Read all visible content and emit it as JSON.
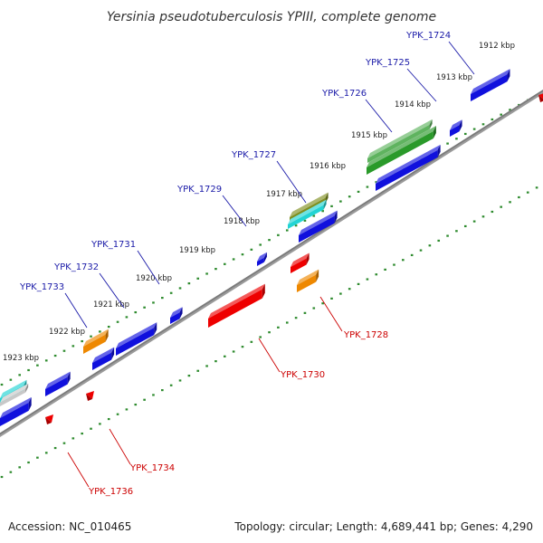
{
  "title": "Yersinia pseudotuberculosis YPIII, complete genome",
  "footer": {
    "accession": "Accession: NC_010465",
    "summary": "Topology: circular; Length: 4,689,441 bp; Genes: 4,290"
  },
  "colors": {
    "forward_label": "#1a1aa8",
    "reverse_label": "#cc0000",
    "backbone": "#7a7a7a",
    "tick": "#2e8b2e"
  },
  "kbp_labels": [
    "1912 kbp",
    "1913 kbp",
    "1914 kbp",
    "1915 kbp",
    "1916 kbp",
    "1917 kbp",
    "1918 kbp",
    "1919 kbp",
    "1920 kbp",
    "1921 kbp",
    "1922 kbp",
    "1923 kbp"
  ],
  "forward_genes": [
    "YPK_1724",
    "YPK_1725",
    "YPK_1726",
    "YPK_1727",
    "YPK_1729",
    "YPK_1731",
    "YPK_1732",
    "YPK_1733"
  ],
  "reverse_genes": [
    "YPK_1728",
    "YPK_1730",
    "YPK_1734",
    "YPK_1736"
  ]
}
